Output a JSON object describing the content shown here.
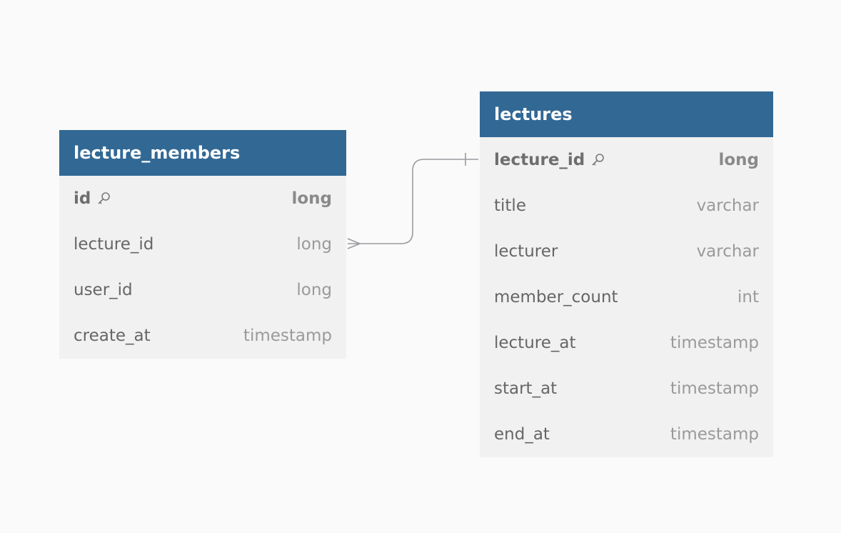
{
  "tables": {
    "lecture_members": {
      "name": "lecture_members",
      "columns": [
        {
          "name": "id",
          "type": "long",
          "pk": true
        },
        {
          "name": "lecture_id",
          "type": "long"
        },
        {
          "name": "user_id",
          "type": "long"
        },
        {
          "name": "create_at",
          "type": "timestamp"
        }
      ]
    },
    "lectures": {
      "name": "lectures",
      "columns": [
        {
          "name": "lecture_id",
          "type": "long",
          "pk": true
        },
        {
          "name": "title",
          "type": "varchar"
        },
        {
          "name": "lecturer",
          "type": "varchar"
        },
        {
          "name": "member_count",
          "type": "int"
        },
        {
          "name": "lecture_at",
          "type": "timestamp"
        },
        {
          "name": "start_at",
          "type": "timestamp"
        },
        {
          "name": "end_at",
          "type": "timestamp"
        }
      ]
    }
  },
  "relationships": [
    {
      "from": "lecture_members.lecture_id",
      "from_cardinality": "many",
      "to": "lectures.lecture_id",
      "to_cardinality": "one"
    }
  ],
  "colors": {
    "header": "#326894",
    "table_body": "#f1f1f1",
    "background": "#fafafa",
    "connector": "#9a9aa0"
  }
}
